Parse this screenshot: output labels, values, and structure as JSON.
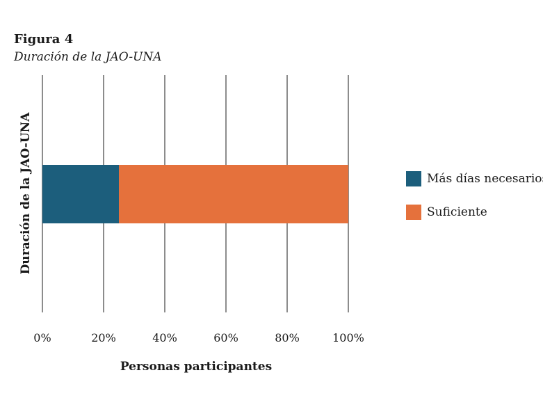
{
  "figure": {
    "label": "Figura 4",
    "title": "Duración de la JAO-UNA"
  },
  "chart_data": {
    "type": "bar",
    "orientation": "horizontal",
    "stacked": true,
    "categories": [
      ""
    ],
    "series": [
      {
        "name": "Más días necesarios",
        "values": [
          25
        ],
        "color": "#1c5e7c"
      },
      {
        "name": "Suficiente",
        "values": [
          75
        ],
        "color": "#e5713c"
      }
    ],
    "xlabel": "Personas participantes",
    "ylabel": "Duración de la JAO-UNA",
    "xlim": [
      0,
      100
    ],
    "x_ticks": [
      "0%",
      "20%",
      "40%",
      "60%",
      "80%",
      "100%"
    ],
    "grid": "vertical",
    "legend_position": "right"
  }
}
